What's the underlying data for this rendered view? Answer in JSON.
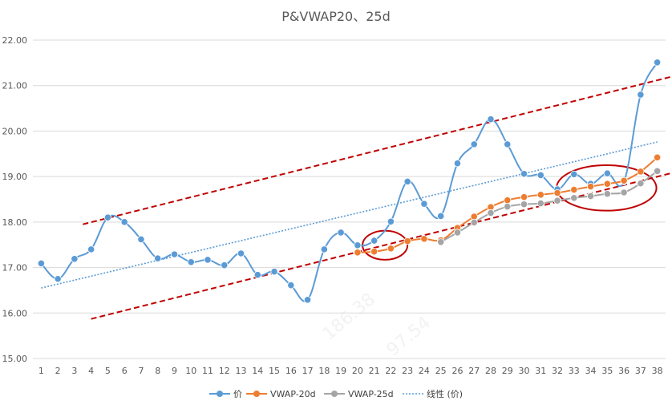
{
  "chart_data": {
    "type": "line",
    "title": "P&VWAP20、25d",
    "x": [
      1,
      2,
      3,
      4,
      5,
      6,
      7,
      8,
      9,
      10,
      11,
      12,
      13,
      14,
      15,
      16,
      17,
      18,
      19,
      20,
      21,
      22,
      23,
      24,
      25,
      26,
      27,
      28,
      29,
      30,
      31,
      32,
      33,
      34,
      35,
      36,
      37,
      38
    ],
    "ylim": [
      15.0,
      22.0
    ],
    "yticks": [
      "15.00",
      "16.00",
      "17.00",
      "18.00",
      "19.00",
      "20.00",
      "21.00",
      "22.00"
    ],
    "grid": true,
    "legend": "bottom",
    "series": [
      {
        "name": "价",
        "color": "#5b9bd5",
        "values": [
          17.09,
          16.75,
          17.19,
          17.4,
          18.1,
          18.0,
          17.62,
          17.2,
          17.29,
          17.12,
          17.17,
          17.05,
          17.31,
          16.84,
          16.91,
          16.61,
          16.29,
          17.4,
          17.77,
          17.49,
          17.59,
          18.01,
          18.89,
          18.4,
          18.13,
          19.29,
          19.71,
          20.26,
          19.71,
          19.06,
          19.03,
          18.72,
          19.05,
          18.84,
          19.07,
          18.89,
          20.8,
          21.51
        ]
      },
      {
        "name": "VWAP-20d",
        "color": "#ed7d31",
        "values": [
          null,
          null,
          null,
          null,
          null,
          null,
          null,
          null,
          null,
          null,
          null,
          null,
          null,
          null,
          null,
          null,
          null,
          null,
          null,
          17.33,
          17.35,
          17.42,
          17.58,
          17.63,
          17.6,
          17.87,
          18.12,
          18.33,
          18.48,
          18.55,
          18.6,
          18.64,
          18.71,
          18.78,
          18.84,
          18.91,
          19.11,
          19.42
        ]
      },
      {
        "name": "VWAP-25d",
        "color": "#a5a5a5",
        "values": [
          null,
          null,
          null,
          null,
          null,
          null,
          null,
          null,
          null,
          null,
          null,
          null,
          null,
          null,
          null,
          null,
          null,
          null,
          null,
          null,
          null,
          null,
          null,
          null,
          17.56,
          17.77,
          17.99,
          18.2,
          18.34,
          18.39,
          18.41,
          18.47,
          18.53,
          18.57,
          18.62,
          18.65,
          18.85,
          19.12
        ]
      }
    ],
    "trendline": {
      "name": "线性 (价)",
      "color": "#5b9bd5",
      "start": [
        1,
        16.55
      ],
      "end": [
        38,
        19.76
      ]
    },
    "channel_lines": [
      {
        "color": "#c00000",
        "start": [
          3.5,
          17.95
        ],
        "end": [
          38.9,
          21.2
        ]
      },
      {
        "color": "#c00000",
        "start": [
          4.0,
          15.87
        ],
        "end": [
          38.9,
          19.08
        ]
      }
    ],
    "ellipses": [
      {
        "color": "#c00000",
        "cx": 21.65,
        "cy": 17.49,
        "rx": 1.35,
        "ry": 0.32
      },
      {
        "color": "#c00000",
        "cx": 34.95,
        "cy": 18.75,
        "rx": 3.0,
        "ry": 0.5
      }
    ],
    "watermarks": [
      "186.38",
      "97.54"
    ]
  }
}
